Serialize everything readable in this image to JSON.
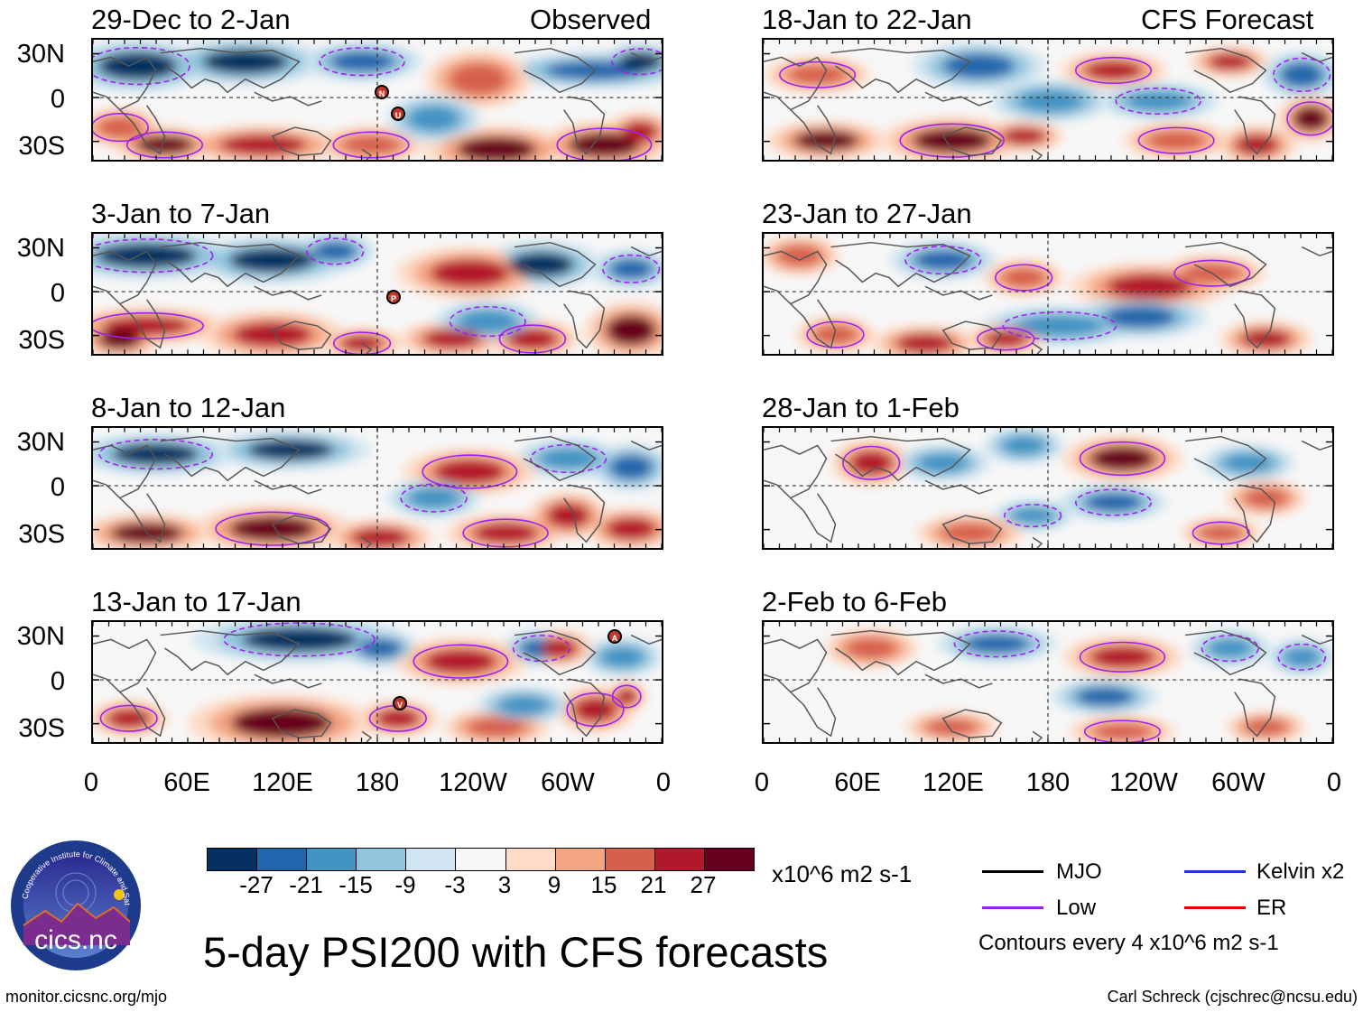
{
  "observed_label": "Observed",
  "forecast_label": "CFS Forecast",
  "panels_left": [
    {
      "title": "29-Dec to 2-Jan"
    },
    {
      "title": "3-Jan to 7-Jan"
    },
    {
      "title": "8-Jan to 12-Jan"
    },
    {
      "title": "13-Jan to 17-Jan"
    }
  ],
  "panels_right": [
    {
      "title": "18-Jan to 22-Jan"
    },
    {
      "title": "23-Jan to 27-Jan"
    },
    {
      "title": "28-Jan to 1-Feb"
    },
    {
      "title": "2-Feb to 6-Feb"
    }
  ],
  "lat_labels": [
    "30N",
    "0",
    "30S"
  ],
  "lon_labels": [
    "0",
    "60E",
    "120E",
    "180",
    "120W",
    "60W",
    "0"
  ],
  "storm_markers": [
    {
      "panel": 0,
      "letter": "N"
    },
    {
      "panel": 0,
      "letter": "U"
    },
    {
      "panel": 1,
      "letter": "P"
    },
    {
      "panel": 3,
      "letter": "A"
    },
    {
      "panel": 3,
      "letter": "V"
    }
  ],
  "colorbar": {
    "colors": [
      "#053061",
      "#2166ac",
      "#4393c3",
      "#92c5de",
      "#d1e5f0",
      "#f7f7f7",
      "#fddbc7",
      "#f4a582",
      "#d6604d",
      "#b2182b",
      "#67001f"
    ],
    "labels": [
      "-27",
      "-21",
      "-15",
      "-9",
      "-3",
      "3",
      "9",
      "15",
      "21",
      "27"
    ],
    "units": "x10^6 m2 s-1"
  },
  "legend": {
    "mjo": "MJO",
    "kelvin": "Kelvin x2",
    "low": "Low",
    "er": "ER",
    "mjo_color": "#000000",
    "kelvin_color": "#2233dd",
    "low_color": "#a020f0",
    "er_color": "#dd0000",
    "contour_note": "Contours every 4 x10^6 m2 s-1"
  },
  "main_title": "5-day PSI200 with CFS forecasts",
  "logo_text": "cics.nc",
  "logo_ring_text": "Cooperative Institute for Climate and Satellites",
  "footer_left": "monitor.cicsnc.org/mjo",
  "footer_right": "Carl Schreck (cjschrec@ncsu.edu)"
}
